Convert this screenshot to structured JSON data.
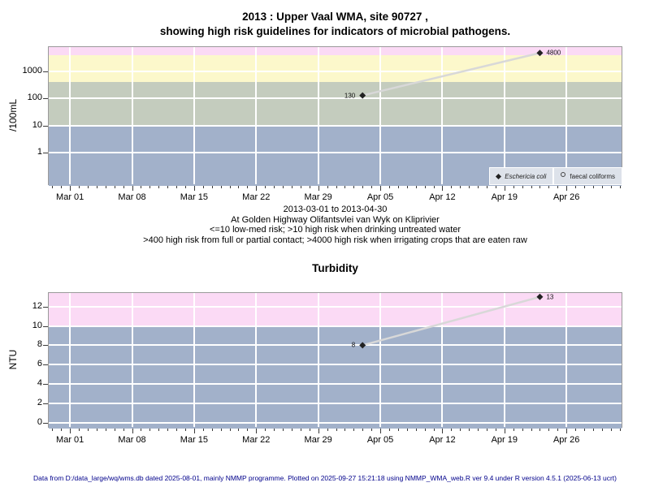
{
  "page": {
    "title_line1": "2013 : Upper Vaal WMA, site 90727 ,",
    "title_line2": "showing high risk guidelines for indicators of microbial pathogens.",
    "footer": "Data from D:/data_large/wq/wms.db dated 2025-08-01, mainly NMMP programme. Plotted on 2025-09-27 15:21:18 using NMMP_WMA_web.R ver 9.4 under R version 4.5.1 (2025-06-13 ucrt)"
  },
  "subtitle_lines": [
    "2013-03-01 to 2013-04-30",
    "At Golden Highway Olifantsvlei van Wyk on Kliprivier",
    "<=10 low-med risk; >10 high risk when drinking untreated water",
    ">400 high risk from full or partial contact; >4000 high risk when irrigating crops that are eaten raw"
  ],
  "colors": {
    "band_pink": "#fbdaf5",
    "band_yellow": "#fcf8cb",
    "band_sage": "#c4ccbe",
    "band_blue": "#a2b1ca",
    "grid": "#ffffff",
    "series_line": "#d8d8d8",
    "marker": "#222222",
    "legend_bg": "#dde2ea",
    "footer_text": "#00008b"
  },
  "chart_data": [
    {
      "type": "line",
      "title": "",
      "ylabel": "/100mL",
      "yscale": "log",
      "ylim": [
        0.06,
        7900
      ],
      "yticks": [
        1,
        10,
        100,
        1000
      ],
      "ytick_labels": [
        "1",
        "10",
        "100",
        "1000"
      ],
      "xlim_days": [
        -2.4,
        62.4
      ],
      "x_major_days": [
        0,
        7,
        14,
        21,
        28,
        35,
        42,
        49,
        56
      ],
      "x_major_labels": [
        "Mar 01",
        "Mar 08",
        "Mar 15",
        "Mar 22",
        "Mar 29",
        "Apr 05",
        "Apr 12",
        "Apr 19",
        "Apr 26"
      ],
      "x_minor_step_days": 1,
      "grid": true,
      "bands": [
        {
          "name": "irrigation-high-risk",
          "from": 4000,
          "to": null,
          "color": "band_pink",
          "note": ">4000 high risk when irrigating crops that are eaten raw"
        },
        {
          "name": "contact-high-risk",
          "from": 400,
          "to": 4000,
          "color": "band_yellow",
          "note": ">400 high risk from full or partial contact"
        },
        {
          "name": "drinking-high-risk",
          "from": 10,
          "to": 400,
          "color": "band_sage",
          "note": ">10 high risk when drinking untreated water"
        },
        {
          "name": "low-med-risk",
          "from": null,
          "to": 10,
          "color": "band_blue",
          "note": "<=10 low-med risk"
        }
      ],
      "series": [
        {
          "name": "Eschericia coli",
          "marker": "filled-diamond",
          "points": [
            {
              "date": "2013-04-03",
              "day": 33,
              "value": 130,
              "label": "130",
              "label_side": "left"
            },
            {
              "date": "2013-04-23",
              "day": 53,
              "value": 4800,
              "label": "4800",
              "label_side": "right"
            }
          ]
        },
        {
          "name": "faecal coliforms",
          "marker": "open-circle",
          "points": []
        }
      ],
      "legend": [
        {
          "marker": "filled-diamond",
          "label": "Eschericia coli"
        },
        {
          "marker": "open-circle",
          "label": "faecal coliforms"
        }
      ],
      "legend_position": "bottom-right"
    },
    {
      "type": "line",
      "title": "Turbidity",
      "ylabel": "NTU",
      "yscale": "linear",
      "ylim": [
        -0.6,
        13.4
      ],
      "yticks": [
        0,
        2,
        4,
        6,
        8,
        10,
        12
      ],
      "ytick_labels": [
        "0",
        "2",
        "4",
        "6",
        "8",
        "10",
        "12"
      ],
      "xlim_days": [
        -2.4,
        62.4
      ],
      "x_major_days": [
        0,
        7,
        14,
        21,
        28,
        35,
        42,
        49,
        56
      ],
      "x_major_labels": [
        "Mar 01",
        "Mar 08",
        "Mar 15",
        "Mar 22",
        "Mar 29",
        "Apr 05",
        "Apr 12",
        "Apr 19",
        "Apr 26"
      ],
      "x_minor_step_days": 1,
      "grid": true,
      "bands": [
        {
          "name": "high-turbidity",
          "from": 10,
          "to": null,
          "color": "band_pink",
          "note": ">10 NTU"
        },
        {
          "name": "acceptable-turbidity",
          "from": null,
          "to": 10,
          "color": "band_blue",
          "note": "<=10 NTU"
        }
      ],
      "series": [
        {
          "name": "Turbidity",
          "marker": "filled-diamond",
          "points": [
            {
              "date": "2013-04-03",
              "day": 33,
              "value": 8,
              "label": "8",
              "label_side": "left"
            },
            {
              "date": "2013-04-23",
              "day": 53,
              "value": 13,
              "label": "13",
              "label_side": "right"
            }
          ]
        }
      ]
    }
  ]
}
